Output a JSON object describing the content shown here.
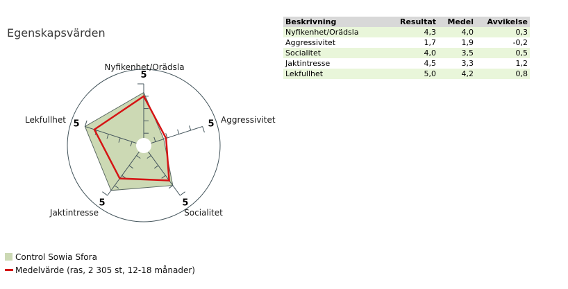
{
  "title": "Egenskapsvärden",
  "table": {
    "columns": [
      {
        "label": "Beskrivning",
        "align": "left"
      },
      {
        "label": "Resultat",
        "align": "right"
      },
      {
        "label": "Medel",
        "align": "right"
      },
      {
        "label": "Avvikelse",
        "align": "right"
      }
    ],
    "rows": [
      {
        "cells": [
          "Nyfikenhet/Orädsla",
          "4,3",
          "4,0",
          "0,3"
        ]
      },
      {
        "cells": [
          "Aggressivitet",
          "1,7",
          "1,9",
          "-0,2"
        ]
      },
      {
        "cells": [
          "Socialitet",
          "4,0",
          "3,5",
          "0,5"
        ]
      },
      {
        "cells": [
          "Jaktintresse",
          "4,5",
          "3,3",
          "1,2"
        ]
      },
      {
        "cells": [
          "Lekfullhet",
          "5,0",
          "4,2",
          "0,8"
        ]
      }
    ],
    "colors": {
      "header_bg": "#d8d8d8",
      "row_alt_bg": "#e9f6da",
      "row_bg": "#ffffff"
    }
  },
  "chart_data": {
    "type": "radar",
    "title": "Egenskapsvärden",
    "axes": [
      "Nyfikenhet/Orädsla",
      "Aggressivitet",
      "Socialitet",
      "Jaktintresse",
      "Lekfullhet"
    ],
    "scale_max": 5,
    "tick_values": [
      1,
      2,
      3,
      4
    ],
    "axis_end_label": "5",
    "series": [
      {
        "name": "Control Sowia Sfora",
        "values": [
          4.3,
          1.7,
          4.0,
          4.5,
          5.0
        ],
        "type": "filled-area",
        "fill": "#ccd9b4",
        "stroke": "#5c6b64"
      },
      {
        "name": "Medelvärde (ras, 2 305 st, 12-18 månader)",
        "values": [
          4.0,
          1.9,
          3.5,
          3.3,
          4.2
        ],
        "type": "line",
        "stroke": "#d51414"
      }
    ],
    "colors": {
      "axis": "#44555c",
      "outer_circle": "#44555c",
      "hole": "#ffffff"
    },
    "legend_position": "bottom-left",
    "grid": "circle-outline-only"
  },
  "legend": {
    "items": [
      {
        "label": "Control Sowia Sfora",
        "swatch": "square",
        "color": "#ccd9b4"
      },
      {
        "label": "Medelvärde (ras, 2 305 st, 12-18 månader)",
        "swatch": "line",
        "color": "#d51414"
      }
    ]
  }
}
